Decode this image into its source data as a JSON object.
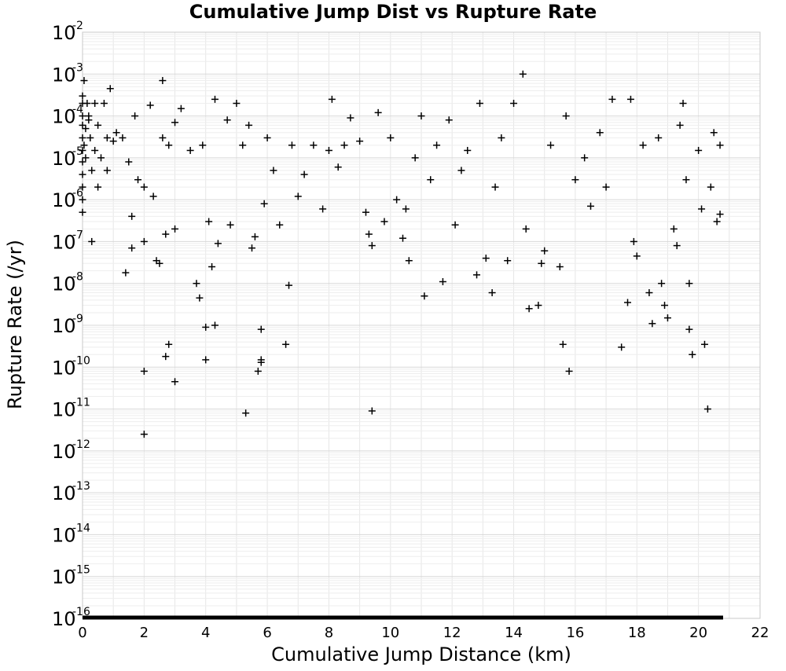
{
  "chart_data": {
    "type": "scatter",
    "title": "Cumulative Jump Dist vs Rupture Rate",
    "xlabel": "Cumulative Jump Distance (km)",
    "ylabel": "Rupture Rate (/yr)",
    "xlim": [
      0,
      22
    ],
    "ylim": [
      1e-16,
      0.01
    ],
    "yscale": "log",
    "grid": true,
    "marker": "+",
    "marker_color": "#000000",
    "x_ticks": [
      "0",
      "2",
      "4",
      "6",
      "8",
      "10",
      "12",
      "14",
      "16",
      "18",
      "20",
      "22"
    ],
    "y_ticks": [
      {
        "base": "10",
        "exp": "-2"
      },
      {
        "base": "10",
        "exp": "-3"
      },
      {
        "base": "10",
        "exp": "-4"
      },
      {
        "base": "10",
        "exp": "-5"
      },
      {
        "base": "10",
        "exp": "-6"
      },
      {
        "base": "10",
        "exp": "-7"
      },
      {
        "base": "10",
        "exp": "-8"
      },
      {
        "base": "10",
        "exp": "-9"
      },
      {
        "base": "10",
        "exp": "-10"
      },
      {
        "base": "10",
        "exp": "-11"
      },
      {
        "base": "10",
        "exp": "-12"
      },
      {
        "base": "10",
        "exp": "-13"
      },
      {
        "base": "10",
        "exp": "-14"
      },
      {
        "base": "10",
        "exp": "-15"
      },
      {
        "base": "10",
        "exp": "-16"
      }
    ],
    "floor_band": {
      "x_range": [
        0,
        20.8
      ],
      "y": 1e-16
    },
    "series": [
      {
        "points": [
          [
            0.0,
            0.0003
          ],
          [
            0.0,
            0.0002
          ],
          [
            0.0,
            0.0001
          ],
          [
            0.0,
            6e-05
          ],
          [
            0.0,
            3e-05
          ],
          [
            0.0,
            1.5e-05
          ],
          [
            0.0,
            8e-06
          ],
          [
            0.0,
            4e-06
          ],
          [
            0.0,
            2e-06
          ],
          [
            0.0,
            1e-06
          ],
          [
            0.0,
            5e-07
          ],
          [
            0.05,
            0.0007
          ],
          [
            0.05,
            2e-05
          ],
          [
            0.1,
            5e-05
          ],
          [
            0.1,
            1e-05
          ],
          [
            0.15,
            0.0002
          ],
          [
            0.2,
            0.0001
          ],
          [
            0.2,
            8e-05
          ],
          [
            0.25,
            3e-05
          ],
          [
            0.3,
            5e-06
          ],
          [
            0.3,
            1e-07
          ],
          [
            0.4,
            0.0002
          ],
          [
            0.4,
            1.5e-05
          ],
          [
            0.5,
            6e-05
          ],
          [
            0.5,
            2e-06
          ],
          [
            0.6,
            1e-05
          ],
          [
            0.7,
            0.0002
          ],
          [
            0.8,
            3e-05
          ],
          [
            0.8,
            5e-06
          ],
          [
            0.9,
            0.00045
          ],
          [
            1.0,
            2.5e-05
          ],
          [
            1.1,
            4e-05
          ],
          [
            1.3,
            3e-05
          ],
          [
            1.4,
            1.8e-08
          ],
          [
            1.5,
            8e-06
          ],
          [
            1.6,
            7e-08
          ],
          [
            1.6,
            4e-07
          ],
          [
            1.7,
            0.0001
          ],
          [
            1.8,
            3e-06
          ],
          [
            2.0,
            1e-07
          ],
          [
            2.0,
            2e-06
          ],
          [
            2.0,
            8e-11
          ],
          [
            2.0,
            2.5e-12
          ],
          [
            2.2,
            0.00018
          ],
          [
            2.3,
            1.2e-06
          ],
          [
            2.4,
            3.5e-08
          ],
          [
            2.5,
            3e-08
          ],
          [
            2.6,
            0.0007
          ],
          [
            2.6,
            3e-05
          ],
          [
            2.7,
            1.8e-10
          ],
          [
            2.7,
            1.5e-07
          ],
          [
            2.8,
            3.5e-10
          ],
          [
            2.8,
            2e-05
          ],
          [
            3.0,
            7e-05
          ],
          [
            3.0,
            2e-07
          ],
          [
            3.0,
            4.5e-11
          ],
          [
            3.2,
            0.00015
          ],
          [
            3.5,
            1.5e-05
          ],
          [
            3.7,
            1e-08
          ],
          [
            3.8,
            4.5e-09
          ],
          [
            3.9,
            2e-05
          ],
          [
            4.0,
            9e-10
          ],
          [
            4.0,
            1.5e-10
          ],
          [
            4.1,
            3e-07
          ],
          [
            4.2,
            2.5e-08
          ],
          [
            4.3,
            1e-09
          ],
          [
            4.3,
            0.00025
          ],
          [
            4.4,
            9e-08
          ],
          [
            4.7,
            8e-05
          ],
          [
            4.8,
            2.5e-07
          ],
          [
            5.0,
            0.0002
          ],
          [
            5.2,
            2e-05
          ],
          [
            5.3,
            8e-12
          ],
          [
            5.4,
            6e-05
          ],
          [
            5.5,
            7e-08
          ],
          [
            5.6,
            1.3e-07
          ],
          [
            5.7,
            8e-11
          ],
          [
            5.8,
            8e-10
          ],
          [
            5.8,
            1.5e-10
          ],
          [
            5.8,
            1.3e-10
          ],
          [
            5.9,
            8e-07
          ],
          [
            6.0,
            3e-05
          ],
          [
            6.2,
            5e-06
          ],
          [
            6.4,
            2.5e-07
          ],
          [
            6.6,
            3.5e-10
          ],
          [
            6.7,
            9e-09
          ],
          [
            6.8,
            2e-05
          ],
          [
            7.0,
            1.2e-06
          ],
          [
            7.2,
            4e-06
          ],
          [
            7.5,
            2e-05
          ],
          [
            7.8,
            6e-07
          ],
          [
            8.0,
            1.5e-05
          ],
          [
            8.1,
            0.00025
          ],
          [
            8.3,
            6e-06
          ],
          [
            8.5,
            2e-05
          ],
          [
            8.7,
            9e-05
          ],
          [
            9.0,
            2.5e-05
          ],
          [
            9.2,
            5e-07
          ],
          [
            9.3,
            1.5e-07
          ],
          [
            9.4,
            8e-08
          ],
          [
            9.4,
            9e-12
          ],
          [
            9.6,
            0.00012
          ],
          [
            9.8,
            3e-07
          ],
          [
            10.0,
            3e-05
          ],
          [
            10.2,
            1e-06
          ],
          [
            10.4,
            1.2e-07
          ],
          [
            10.5,
            6e-07
          ],
          [
            10.6,
            3.5e-08
          ],
          [
            10.8,
            1e-05
          ],
          [
            11.0,
            0.0001
          ],
          [
            11.1,
            5e-09
          ],
          [
            11.3,
            3e-06
          ],
          [
            11.5,
            2e-05
          ],
          [
            11.7,
            1.1e-08
          ],
          [
            11.9,
            8e-05
          ],
          [
            12.1,
            2.5e-07
          ],
          [
            12.3,
            5e-06
          ],
          [
            12.5,
            1.5e-05
          ],
          [
            12.8,
            1.6e-08
          ],
          [
            12.9,
            0.0002
          ],
          [
            13.1,
            4e-08
          ],
          [
            13.3,
            6e-09
          ],
          [
            13.4,
            2e-06
          ],
          [
            13.6,
            3e-05
          ],
          [
            13.8,
            3.5e-08
          ],
          [
            14.0,
            0.0002
          ],
          [
            14.3,
            0.001
          ],
          [
            14.4,
            2e-07
          ],
          [
            14.5,
            2.5e-09
          ],
          [
            14.8,
            3e-09
          ],
          [
            14.9,
            3e-08
          ],
          [
            15.0,
            6e-08
          ],
          [
            15.2,
            2e-05
          ],
          [
            15.5,
            2.5e-08
          ],
          [
            15.6,
            3.5e-10
          ],
          [
            15.7,
            0.0001
          ],
          [
            15.8,
            8e-11
          ],
          [
            16.0,
            3e-06
          ],
          [
            16.3,
            1e-05
          ],
          [
            16.5,
            7e-07
          ],
          [
            16.8,
            4e-05
          ],
          [
            17.0,
            2e-06
          ],
          [
            17.2,
            0.00025
          ],
          [
            17.5,
            3e-10
          ],
          [
            17.7,
            3.5e-09
          ],
          [
            17.8,
            0.00025
          ],
          [
            17.9,
            1e-07
          ],
          [
            18.0,
            4.5e-08
          ],
          [
            18.2,
            2e-05
          ],
          [
            18.4,
            6e-09
          ],
          [
            18.5,
            1.1e-09
          ],
          [
            18.7,
            3e-05
          ],
          [
            18.8,
            1e-08
          ],
          [
            18.9,
            3e-09
          ],
          [
            19.0,
            1.5e-09
          ],
          [
            19.2,
            2e-07
          ],
          [
            19.3,
            8e-08
          ],
          [
            19.4,
            6e-05
          ],
          [
            19.5,
            0.0002
          ],
          [
            19.6,
            3e-06
          ],
          [
            19.7,
            8e-10
          ],
          [
            19.7,
            1e-08
          ],
          [
            19.8,
            2e-10
          ],
          [
            20.0,
            1.5e-05
          ],
          [
            20.1,
            6e-07
          ],
          [
            20.2,
            3.5e-10
          ],
          [
            20.3,
            1e-11
          ],
          [
            20.4,
            2e-06
          ],
          [
            20.5,
            4e-05
          ],
          [
            20.6,
            3e-07
          ],
          [
            20.7,
            2e-05
          ],
          [
            20.7,
            4.5e-07
          ]
        ]
      }
    ]
  }
}
